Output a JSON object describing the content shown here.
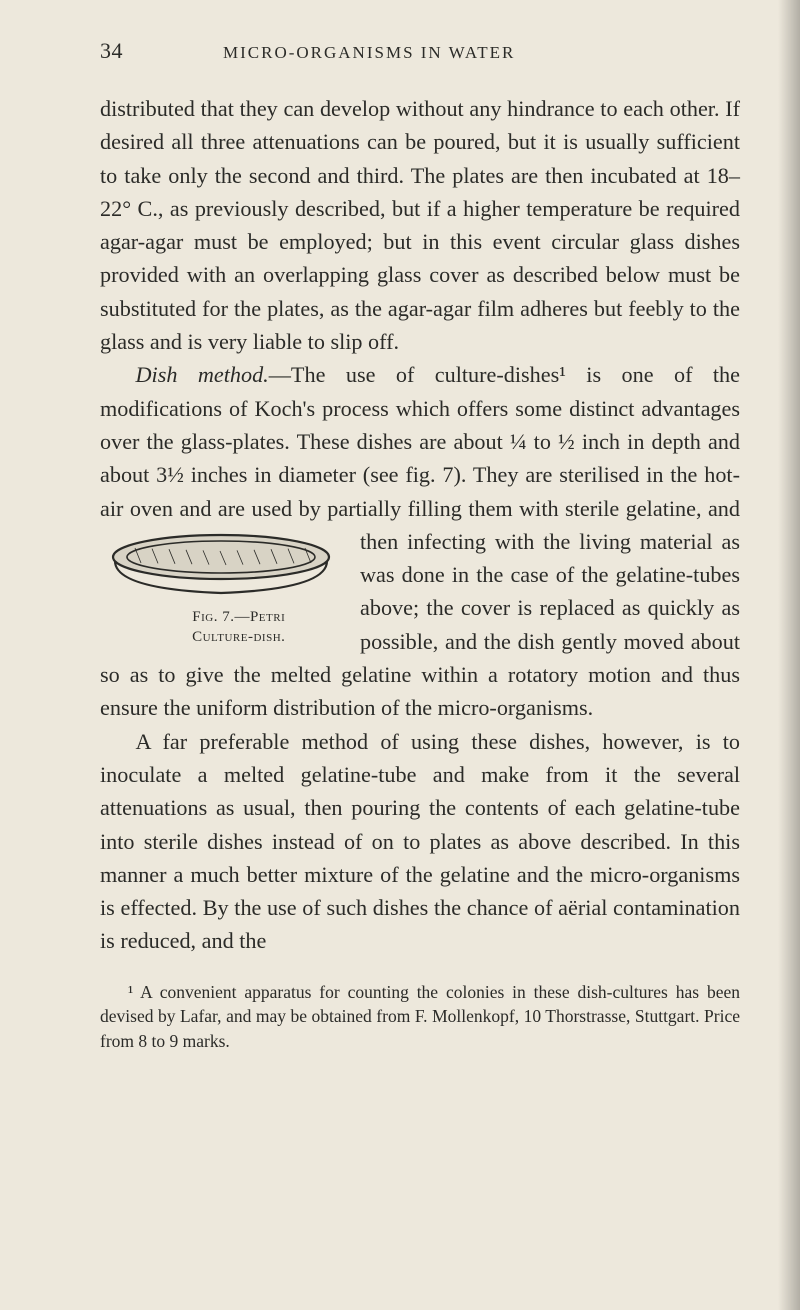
{
  "page": {
    "number": "34",
    "running_head": "MICRO-ORGANISMS IN WATER"
  },
  "paragraphs": {
    "p1": "distributed that they can develop without any hindrance to each other. If desired all three attenuations can be poured, but it is usually sufficient to take only the second and third. The plates are then incubated at 18–22° C., as previously described, but if a higher temperature be required agar-agar must be employed; but in this event circular glass dishes provided with an overlapping glass cover as described below must be substituted for the plates, as the agar-agar film adheres but feebly to the glass and is very liable to slip off.",
    "p2_lead_italic": "Dish method.",
    "p2_rest": "—The use of culture-dishes¹ is one of the modifications of Koch's process which offers some distinct advantages over the glass-plates. These dishes are about ¼ to ½ inch in depth and about 3½ inches in diameter (see fig. 7). They are sterilised in the hot-air oven and are used by partially filling them with sterile gelatine, and then infecting with the living material as was done in the case of the gelatine-tubes above; the cover is replaced as quickly as possible, and the dish gently moved about so as to give the melted gelatine within a rotatory motion and thus ensure the uniform distribution of the micro-organisms.",
    "p3": "A far preferable method of using these dishes, however, is to inoculate a melted gelatine-tube and make from it the several attenuations as usual, then pouring the contents of each gelatine-tube into sterile dishes instead of on to plates as above described. In this manner a much better mixture of the gelatine and the micro-organisms is effected. By the use of such dishes the chance of aërial contamination is reduced, and the"
  },
  "figure": {
    "caption_line1": "Fig. 7.—Petri",
    "caption_line2": "Culture-dish."
  },
  "footnote": {
    "text": "¹ A convenient apparatus for counting the colonies in these dish-cultures has been devised by Lafar, and may be obtained from F. Mollenkopf, 10 Thorstrasse, Stuttgart. Price from 8 to 9 marks."
  },
  "colors": {
    "background": "#ede8dc",
    "text": "#2b2b28",
    "dish_fill": "#d8d3c5",
    "dish_stroke": "#2b2b28"
  }
}
